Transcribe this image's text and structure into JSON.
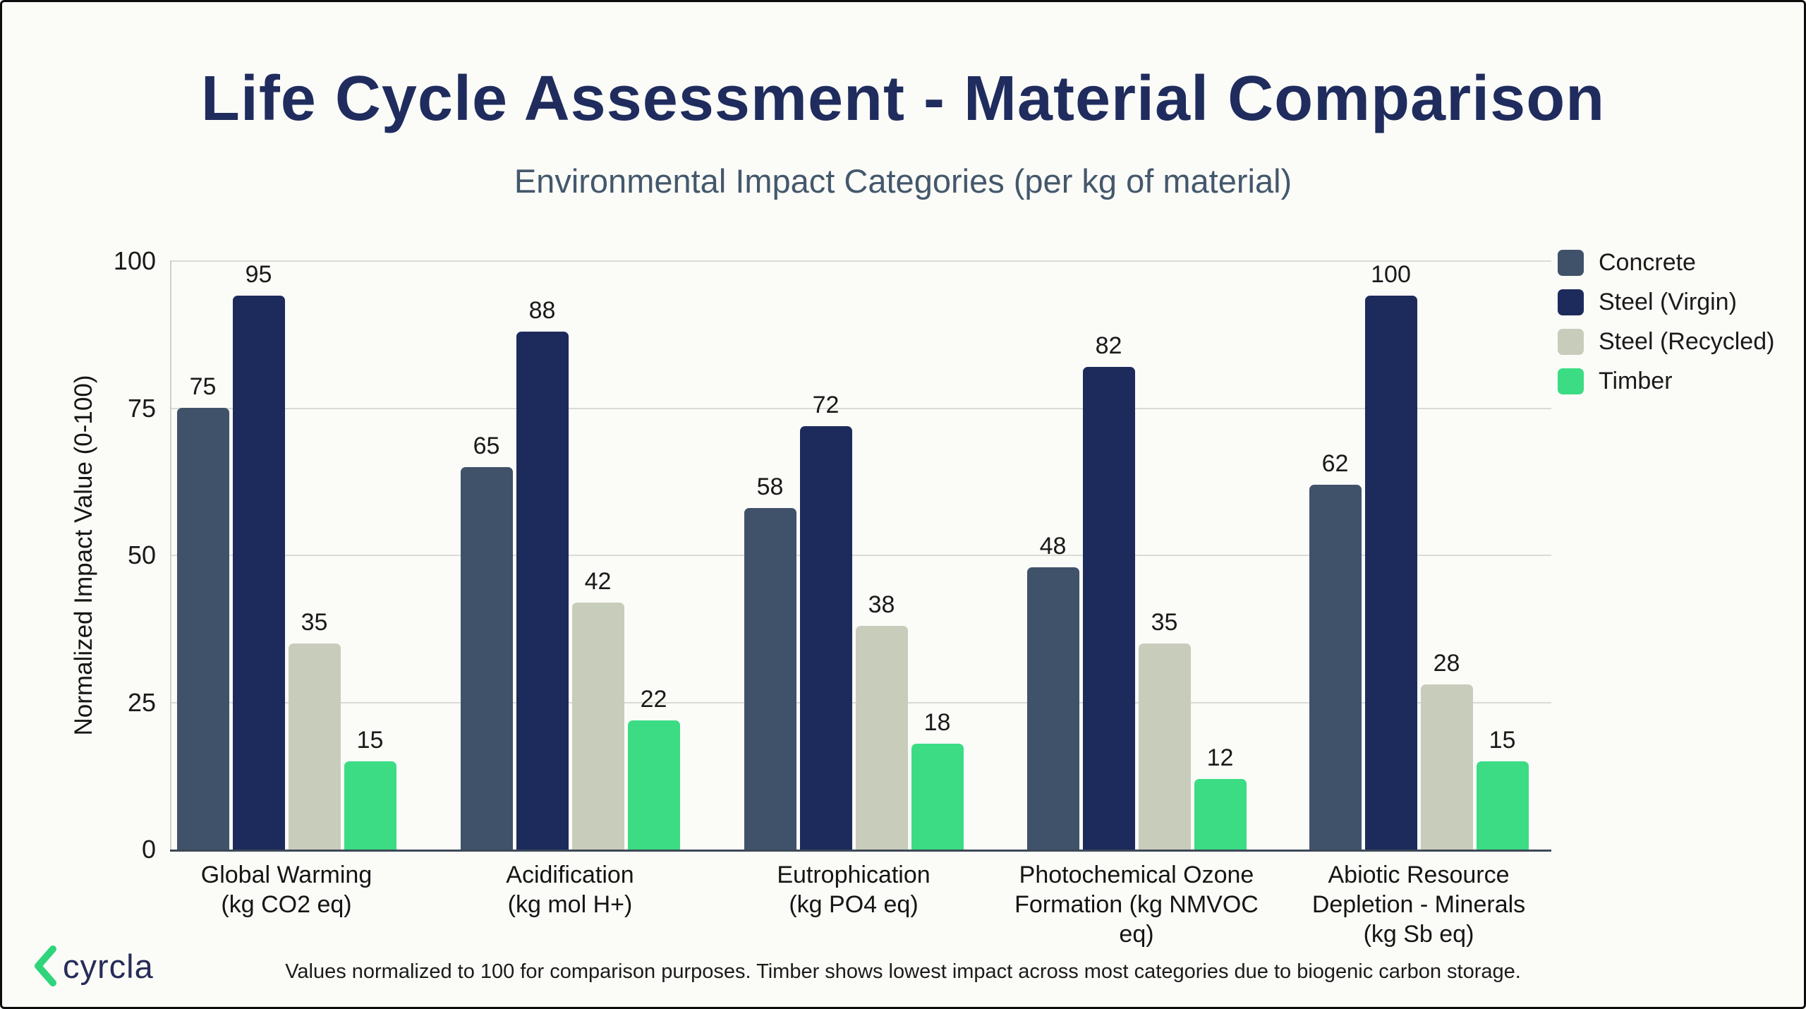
{
  "header": {
    "title": "Life Cycle Assessment - Material Comparison",
    "subtitle": "Environmental Impact Categories (per kg of material)"
  },
  "chart_data": {
    "type": "bar",
    "title": "Life Cycle Assessment - Material Comparison",
    "subtitle": "Environmental Impact Categories (per kg of material)",
    "xlabel": "",
    "ylabel": "Normalized Impact Value (0-100)",
    "ylim": [
      0,
      100
    ],
    "yticks": [
      0,
      25,
      50,
      75,
      100
    ],
    "grid": true,
    "legend_position": "top-right",
    "bar_value_labels": true,
    "categories": [
      "Global Warming\n(kg CO2 eq)",
      "Acidification\n(kg mol H+)",
      "Eutrophication\n(kg PO4 eq)",
      "Photochemical Ozone\nFormation (kg NMVOC\neq)",
      "Abiotic Resource\nDepletion - Minerals\n(kg Sb eq)"
    ],
    "series": [
      {
        "name": "Concrete",
        "color": "#40526a",
        "values": [
          75,
          65,
          58,
          48,
          62
        ]
      },
      {
        "name": "Steel (Virgin)",
        "color": "#1d2a5c",
        "values": [
          95,
          88,
          72,
          82,
          100
        ]
      },
      {
        "name": "Steel (Recycled)",
        "color": "#c8cdbb",
        "values": [
          35,
          42,
          38,
          35,
          28
        ]
      },
      {
        "name": "Timber",
        "color": "#3cdc85",
        "values": [
          15,
          22,
          18,
          12,
          15
        ]
      }
    ]
  },
  "footer": {
    "note": "Values normalized to 100 for comparison purposes. Timber shows lowest impact across most categories due to biogenic carbon storage.",
    "brand_name": "cyrcla",
    "brand_mark": "chevron-left-icon",
    "brand_color": "#2ed57a",
    "brand_text_color": "#272c58"
  },
  "style": {
    "background": "#fbfbf8",
    "border_color": "#0d0d0d",
    "title_color": "#1f2c5d",
    "subtitle_color": "#44586c",
    "text_color": "#1c1c1c",
    "gridline_color": "#dadad6",
    "axis_line_color": "#3d4856"
  }
}
